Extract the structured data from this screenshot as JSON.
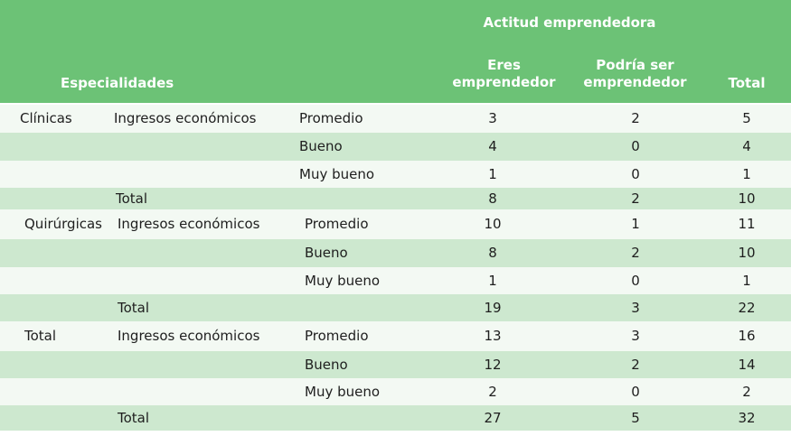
{
  "header": {
    "group_title": "Actitud emprendedora",
    "specialties": "Especialidades",
    "col_eres": [
      "Eres",
      "emprendedor"
    ],
    "col_podria": [
      "Podría ser",
      "emprendedor"
    ],
    "col_total": "Total"
  },
  "rows": [
    {
      "group": "Clínicas",
      "category": "Ingresos económicos",
      "level": "Promedio",
      "eres": "3",
      "podria": "2",
      "total": "5"
    },
    {
      "group": "",
      "category": "",
      "level": "Bueno",
      "eres": "4",
      "podria": "0",
      "total": "4"
    },
    {
      "group": "",
      "category": "",
      "level": "Muy bueno",
      "eres": "1",
      "podria": "0",
      "total": "1"
    },
    {
      "group": "",
      "category": "Total",
      "level": "",
      "eres": "8",
      "podria": "2",
      "total": "10"
    },
    {
      "group": "Quirúrgicas",
      "category": "Ingresos económicos",
      "level": "Promedio",
      "eres": "10",
      "podria": "1",
      "total": "11"
    },
    {
      "group": "",
      "category": "",
      "level": "Bueno",
      "eres": "8",
      "podria": "2",
      "total": "10"
    },
    {
      "group": "",
      "category": "",
      "level": "Muy bueno",
      "eres": "1",
      "podria": "0",
      "total": "1"
    },
    {
      "group": "",
      "category": "Total",
      "level": "",
      "eres": "19",
      "podria": "3",
      "total": "22"
    },
    {
      "group": "Total",
      "category": "Ingresos económicos",
      "level": "Promedio",
      "eres": "13",
      "podria": "3",
      "total": "16"
    },
    {
      "group": "",
      "category": "",
      "level": "Bueno",
      "eres": "12",
      "podria": "2",
      "total": "14"
    },
    {
      "group": "",
      "category": "",
      "level": "Muy bueno",
      "eres": "2",
      "podria": "0",
      "total": "2"
    },
    {
      "group": "",
      "category": "Total",
      "level": "",
      "eres": "27",
      "podria": "5",
      "total": "32"
    }
  ]
}
